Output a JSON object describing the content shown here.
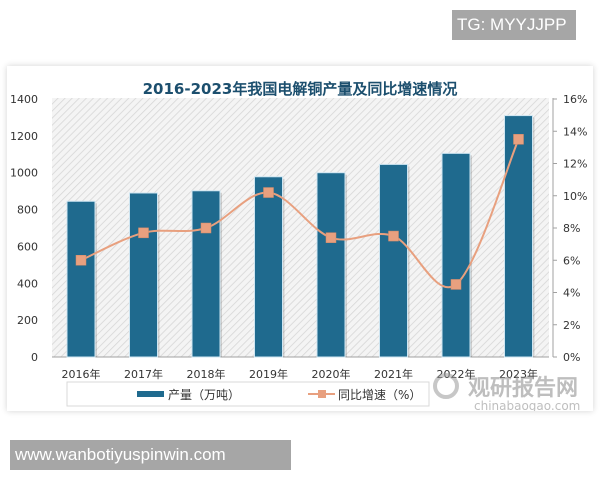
{
  "watermarks": {
    "tg": "TG: MYYJJPP",
    "url": "www.wanbotiyuspinwin.com",
    "brand_cn": "观研报告网",
    "brand_url": "chinabaogao.com"
  },
  "chart_data": {
    "type": "bar+line",
    "title": "2016-2023年我国电解铜产量及同比增速情况",
    "categories": [
      "2016年",
      "2017年",
      "2018年",
      "2019年",
      "2020年",
      "2021年",
      "2022年",
      "2023年"
    ],
    "series": [
      {
        "name": "产量（万吨）",
        "type": "bar",
        "axis": "left",
        "color": "#1f6a8e",
        "values": [
          845,
          890,
          902,
          978,
          1000,
          1045,
          1105,
          1310
        ]
      },
      {
        "name": "同比增速（%）",
        "type": "line",
        "axis": "right",
        "color": "#e8a07f",
        "values": [
          6.0,
          7.7,
          8.0,
          10.2,
          7.4,
          7.5,
          4.5,
          13.5
        ]
      }
    ],
    "left_axis": {
      "ticks": [
        "0",
        "200",
        "400",
        "600",
        "800",
        "1000",
        "1200",
        "1400"
      ],
      "ylim": [
        0,
        1400
      ]
    },
    "right_axis": {
      "ticks": [
        "0%",
        "2%",
        "4%",
        "6%",
        "8%",
        "10%",
        "12%",
        "14%",
        "16%"
      ],
      "ylim": [
        0,
        16
      ]
    },
    "legend": {
      "position": "bottom",
      "items": [
        "产量（万吨）",
        "同比增速（%）"
      ]
    },
    "grid": false
  }
}
